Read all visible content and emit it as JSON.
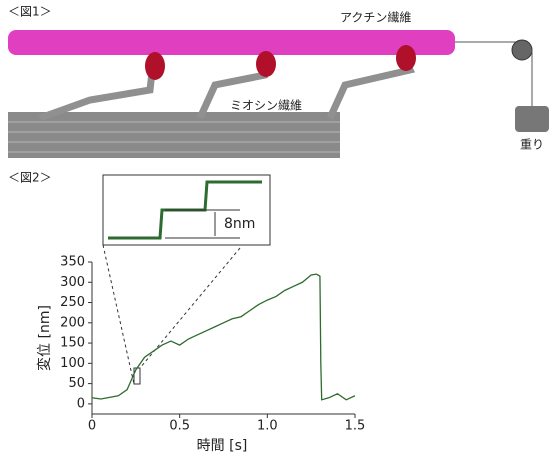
{
  "figure1": {
    "label": "＜図1＞",
    "actin_label": "アクチン繊維",
    "myosin_label": "ミオシン繊維",
    "weight_label": "重り"
  },
  "figure2": {
    "label": "＜図2＞"
  },
  "chart_data": {
    "type": "line",
    "xlabel": "時間 [s]",
    "ylabel": "変位 [nm]",
    "inset_annotation": "8nm",
    "x": [
      0,
      0.05,
      0.1,
      0.15,
      0.2,
      0.25,
      0.3,
      0.35,
      0.4,
      0.45,
      0.5,
      0.55,
      0.6,
      0.65,
      0.7,
      0.75,
      0.8,
      0.85,
      0.9,
      0.95,
      1.0,
      1.05,
      1.1,
      1.15,
      1.2,
      1.25,
      1.28,
      1.3,
      1.305,
      1.31,
      1.35,
      1.4,
      1.45,
      1.5
    ],
    "series": [
      {
        "name": "変位",
        "color": "#2e6b2e",
        "values": [
          15,
          12,
          16,
          20,
          35,
          84,
          115,
          130,
          145,
          155,
          145,
          160,
          170,
          180,
          190,
          200,
          210,
          215,
          230,
          245,
          256,
          265,
          280,
          290,
          300,
          318,
          320,
          315,
          100,
          10,
          15,
          25,
          10,
          20
        ]
      }
    ],
    "xlim": [
      0,
      1.5
    ],
    "ylim": [
      -25,
      350
    ],
    "xticks": [
      0,
      0.5,
      {
        "value": 1,
        "label": "1.0"
      },
      1.5
    ],
    "yticks": [
      0,
      50,
      100,
      150,
      200,
      250,
      300,
      350
    ]
  }
}
